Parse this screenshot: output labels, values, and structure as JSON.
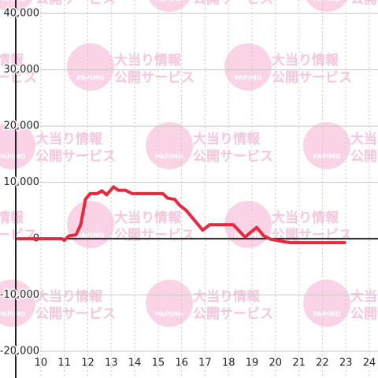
{
  "chart_data": {
    "type": "line",
    "watermark": {
      "brand": "PAPIMO",
      "lines": [
        "大当り情報",
        "公開サービス"
      ]
    },
    "x": [
      9.0,
      10.9,
      11.0,
      11.2,
      11.5,
      11.7,
      11.9,
      12.1,
      12.4,
      12.6,
      12.8,
      13.1,
      13.3,
      13.6,
      13.9,
      15.2,
      15.4,
      15.7,
      15.9,
      16.2,
      16.5,
      16.9,
      17.2,
      18.2,
      18.7,
      19.2,
      19.5,
      19.8,
      20.3,
      20.6,
      23.0
    ],
    "series": [
      {
        "color": "#e8283c",
        "values": [
          0,
          0,
          -300,
          500,
          700,
          2500,
          7000,
          8000,
          8000,
          8500,
          7800,
          9200,
          8600,
          8600,
          8000,
          8000,
          7200,
          7000,
          6000,
          5000,
          3500,
          1500,
          2500,
          2500,
          300,
          2000,
          500,
          -100,
          -500,
          -700,
          -700
        ]
      }
    ],
    "xlim": [
      8.93,
      24.37
    ],
    "xticks": [
      10,
      11,
      12,
      13,
      14,
      15,
      16,
      17,
      18,
      19,
      20,
      21,
      22,
      23,
      24
    ],
    "ylim": [
      -24750,
      42400
    ],
    "yticks": [
      {
        "value": -20000,
        "label": "-20,000"
      },
      {
        "value": -10000,
        "label": "-10,000"
      },
      {
        "value": 0,
        "label": "0"
      },
      {
        "value": 10000,
        "label": "10,000"
      },
      {
        "value": 20000,
        "label": "20,000"
      },
      {
        "value": 30000,
        "label": "30,000"
      },
      {
        "value": 40000,
        "label": "40,000"
      }
    ],
    "grid": true
  }
}
